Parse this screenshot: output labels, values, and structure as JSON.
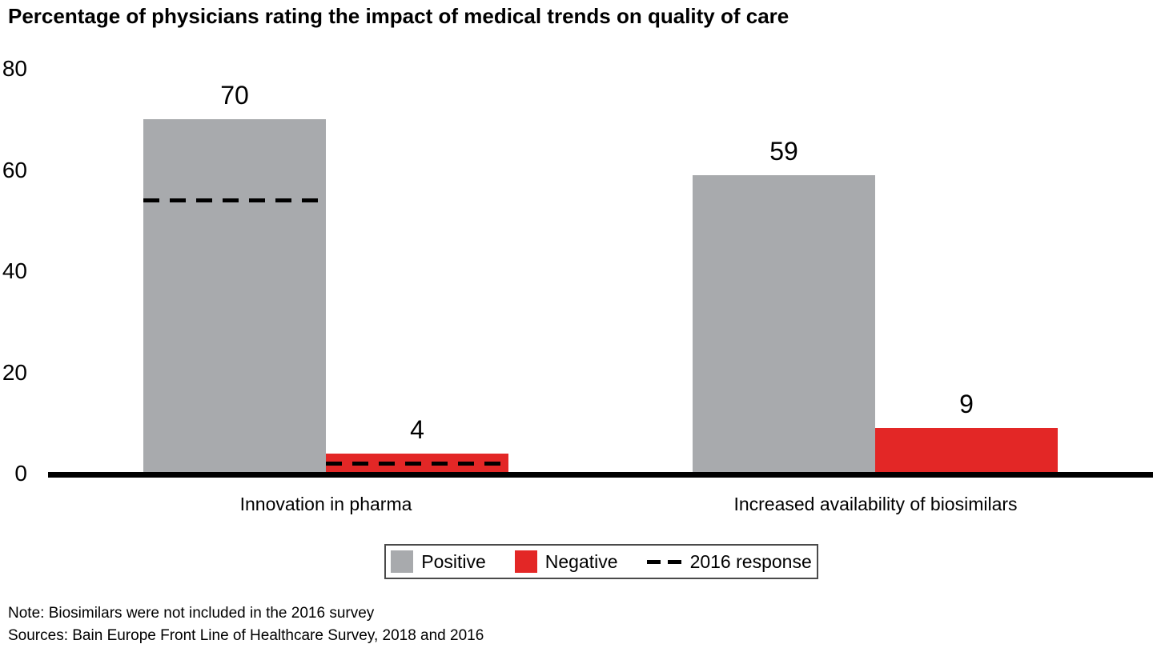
{
  "chart_data": {
    "type": "bar",
    "title": "Percentage of physicians rating the impact of medical trends on quality of care",
    "xlabel": "",
    "ylabel": "",
    "ylim": [
      0,
      80
    ],
    "yticks": [
      0,
      20,
      40,
      60,
      80
    ],
    "grid": false,
    "legend_position": "bottom",
    "categories": [
      "Innovation in pharma",
      "Increased availability of biosimilars"
    ],
    "series": [
      {
        "name": "Positive",
        "color": "#a8aaad",
        "values": [
          70,
          59
        ]
      },
      {
        "name": "Negative",
        "color": "#e32726",
        "values": [
          4,
          9
        ]
      }
    ],
    "reference_name": "2016 response",
    "reference_color": "#000000",
    "reference_2016": [
      {
        "Positive": 54,
        "Negative": 2
      },
      null
    ],
    "axis_color": "#000000",
    "note": "Note: Biosimilars were not included in the 2016 survey",
    "sources": "Sources: Bain Europe Front Line of Healthcare Survey, 2018 and 2016"
  }
}
